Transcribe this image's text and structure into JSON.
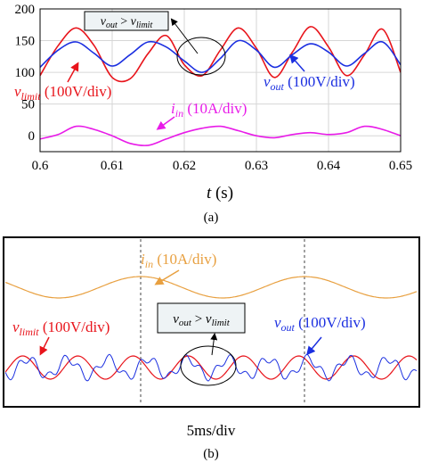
{
  "chart_data": [
    {
      "panel": "(a)",
      "type": "line",
      "xlabel_var": "t",
      "xlabel_unit": " (s)",
      "xlim": [
        0.6,
        0.65
      ],
      "ylim": [
        -25,
        200
      ],
      "xticks": [
        "0.6",
        "0.61",
        "0.62",
        "0.63",
        "0.64",
        "0.65"
      ],
      "yticks": [
        "0",
        "50",
        "100",
        "150",
        "200"
      ],
      "grid": true,
      "callout": {
        "v": "v",
        "sub_out": "out",
        "op": " > ",
        "sub_limit": "limit"
      },
      "series": [
        {
          "name_var": "v",
          "name_sub": "limit",
          "name_unit": " (100V/div)",
          "color": "#e8141b",
          "x": [
            0.6,
            0.6025,
            0.605,
            0.6075,
            0.61,
            0.6125,
            0.615,
            0.6175,
            0.62,
            0.6225,
            0.625,
            0.6275,
            0.63,
            0.6325,
            0.635,
            0.6375,
            0.64,
            0.6425,
            0.645,
            0.6475,
            0.65
          ],
          "values": [
            95,
            142,
            170,
            142,
            92,
            90,
            130,
            158,
            112,
            95,
            135,
            170,
            138,
            92,
            132,
            172,
            140,
            95,
            128,
            168,
            100
          ]
        },
        {
          "name_var": "v",
          "name_sub": "out",
          "name_unit": " (100V/div)",
          "color": "#1b2fe0",
          "x": [
            0.6,
            0.6025,
            0.605,
            0.6075,
            0.61,
            0.6125,
            0.615,
            0.6175,
            0.62,
            0.6225,
            0.625,
            0.6275,
            0.63,
            0.6325,
            0.635,
            0.6375,
            0.64,
            0.6425,
            0.645,
            0.6475,
            0.65
          ],
          "values": [
            108,
            135,
            148,
            130,
            110,
            128,
            148,
            140,
            118,
            100,
            122,
            150,
            135,
            108,
            128,
            145,
            132,
            110,
            130,
            148,
            112
          ]
        },
        {
          "name_var": "i",
          "name_sub": "in",
          "name_unit": " (10A/div)",
          "color": "#e81be8",
          "x": [
            0.6,
            0.6025,
            0.605,
            0.6075,
            0.61,
            0.6125,
            0.615,
            0.6175,
            0.62,
            0.6225,
            0.625,
            0.6275,
            0.63,
            0.6325,
            0.635,
            0.6375,
            0.64,
            0.6425,
            0.645,
            0.6475,
            0.65
          ],
          "values": [
            -5,
            2,
            15,
            10,
            0,
            -12,
            -15,
            -5,
            5,
            12,
            15,
            8,
            0,
            -3,
            2,
            5,
            2,
            5,
            15,
            10,
            0
          ]
        }
      ]
    },
    {
      "panel": "(b)",
      "type": "line",
      "time_scale": "5ms/div",
      "callout": {
        "v": "v",
        "sub_out": "out",
        "op": " > ",
        "sub_limit": "limit"
      },
      "series": [
        {
          "name_var": "i",
          "name_sub": "in",
          "name_unit": " (10A/div)",
          "color": "#e8a040"
        },
        {
          "name_var": "v",
          "name_sub": "limit",
          "name_unit": " (100V/div)",
          "color": "#e8141b"
        },
        {
          "name_var": "v",
          "name_sub": "out",
          "name_unit": " (100V/div)",
          "color": "#1b2fe0"
        }
      ]
    }
  ],
  "captions": {
    "a": "(a)",
    "b": "(b)"
  }
}
